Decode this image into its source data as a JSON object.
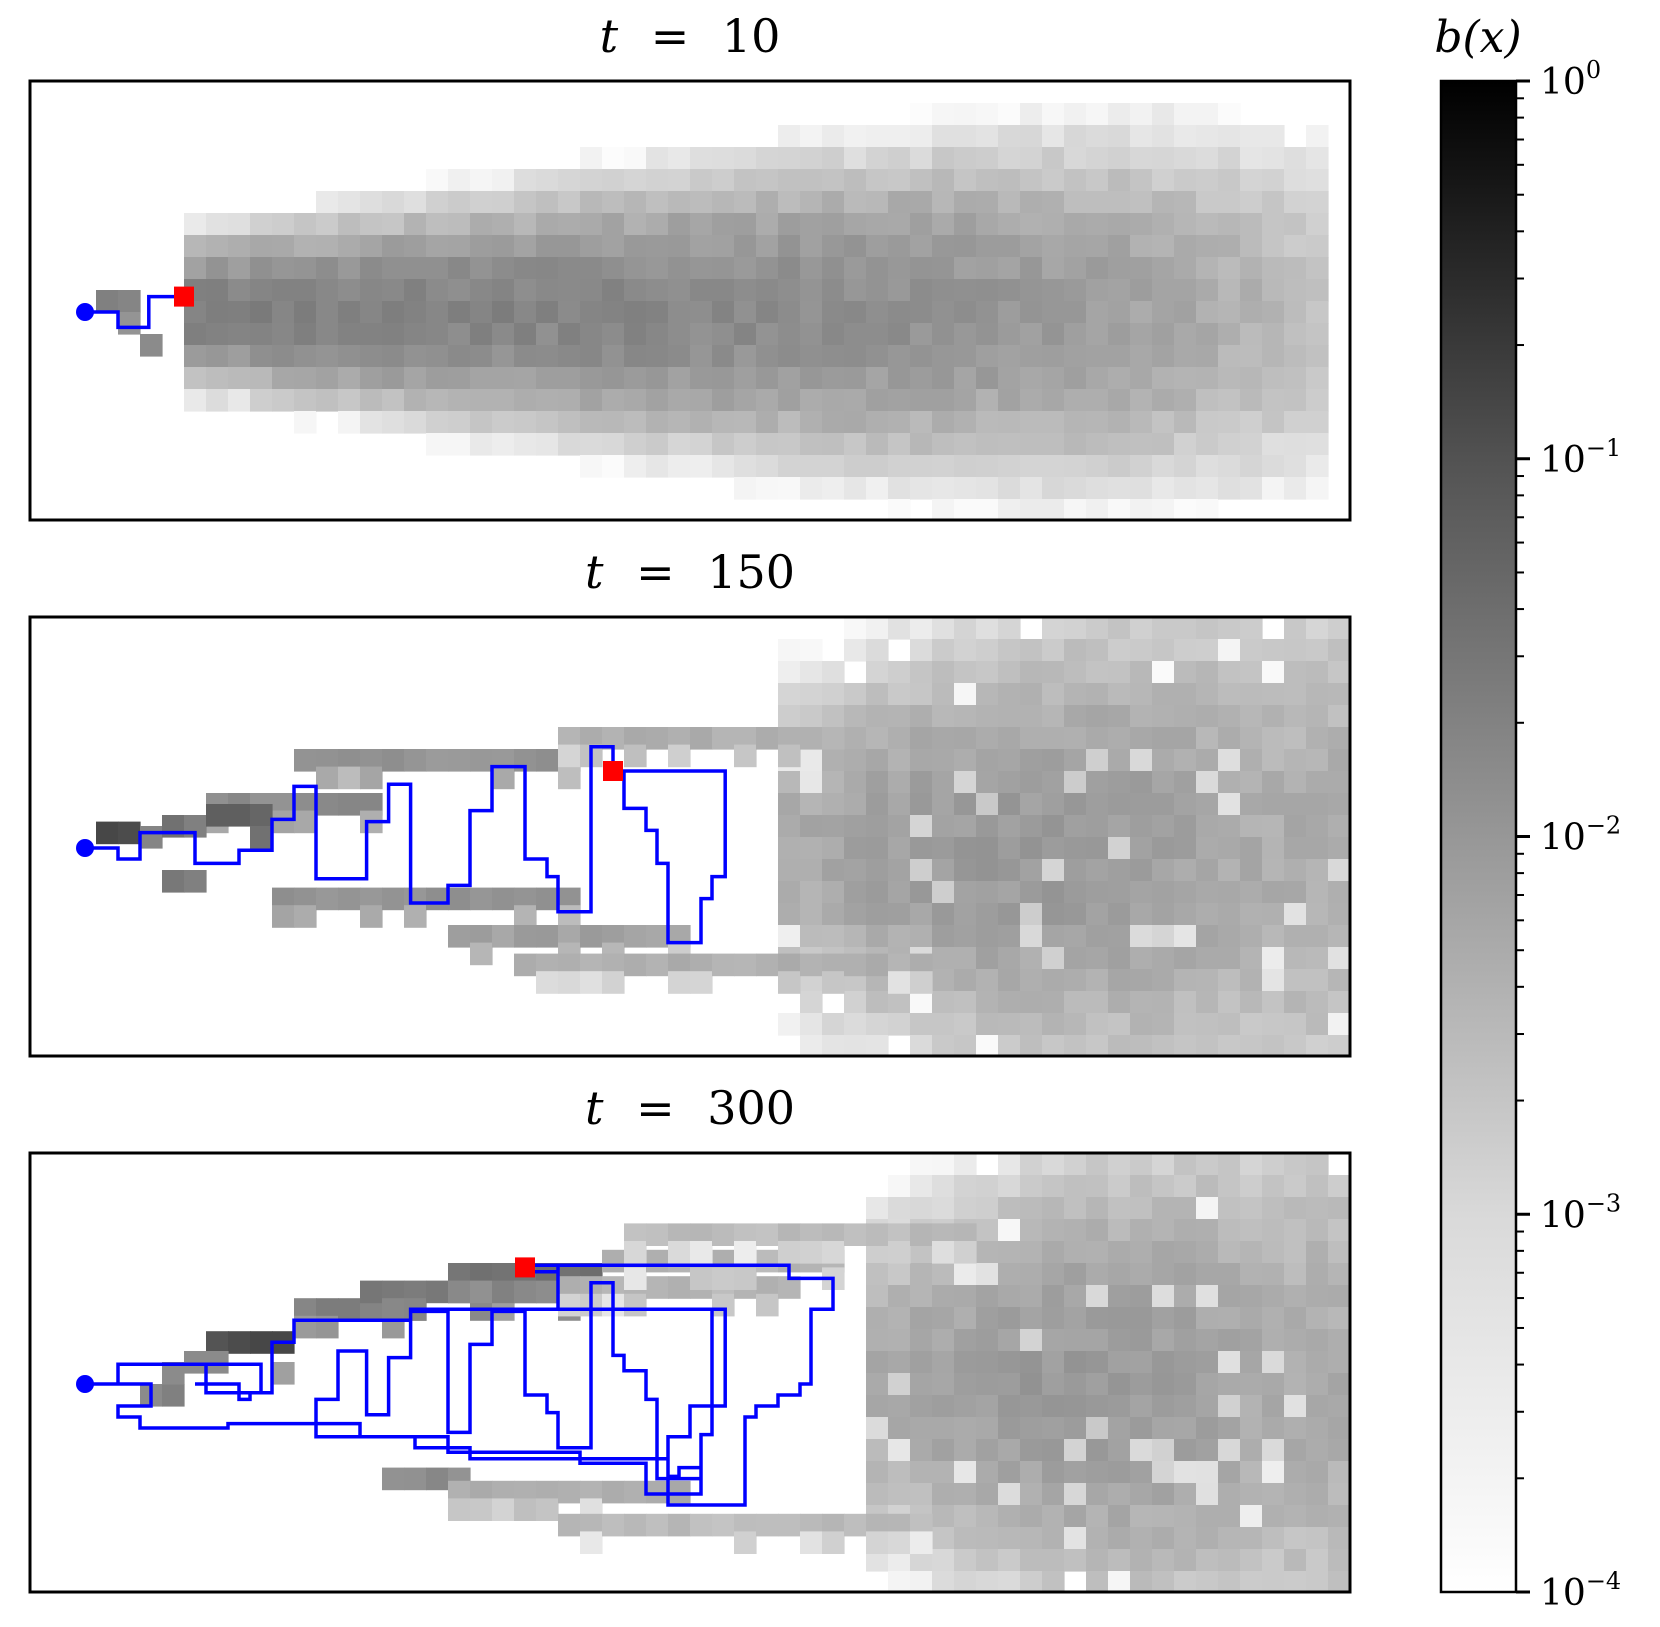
{
  "chart_data": {
    "type": "heatmap",
    "panels": [
      {
        "title_t": "t",
        "title_eq": "=",
        "title_value": "10",
        "grid_cols": 60,
        "grid_rows": 20,
        "start_cell": [
          2.5,
          10.5
        ],
        "agent_cell": [
          7,
          9.8
        ],
        "path": [
          [
            2.5,
            10.5
          ],
          [
            4,
            10.5
          ],
          [
            4,
            11.2
          ],
          [
            5.4,
            11.2
          ],
          [
            5.4,
            9.8
          ],
          [
            7,
            9.8
          ]
        ],
        "beliefs": [
          {
            "cell": [
              3,
              9.5
            ],
            "value": 0.006
          },
          {
            "cell": [
              4,
              9.5
            ],
            "value": 0.005
          },
          {
            "cell": [
              4,
              10.5
            ],
            "value": 0.003
          },
          {
            "cell": [
              5,
              11.5
            ],
            "value": 0.004
          }
        ],
        "cloud": {
          "x0": 7,
          "x1": 58,
          "center_row": 10.5,
          "spread_start": 1.5,
          "spread_end": 4.5,
          "peak": 0.006
        }
      },
      {
        "title_t": "t",
        "title_eq": "=",
        "title_value": "150",
        "grid_cols": 60,
        "grid_rows": 20,
        "start_cell": [
          2.5,
          10.5
        ],
        "agent_cell": [
          26.5,
          7
        ],
        "path": [
          [
            2.5,
            10.5
          ],
          [
            4,
            10.5
          ],
          [
            4,
            11
          ],
          [
            5,
            11
          ],
          [
            5,
            9.8
          ],
          [
            7.5,
            9.8
          ],
          [
            7.5,
            11.2
          ],
          [
            9.5,
            11.2
          ],
          [
            9.5,
            10.6
          ],
          [
            11,
            10.6
          ],
          [
            11,
            9.2
          ],
          [
            12,
            9.2
          ],
          [
            12,
            7.7
          ],
          [
            13,
            7.7
          ],
          [
            13,
            11.9
          ],
          [
            15.3,
            11.9
          ],
          [
            15.3,
            9.3
          ],
          [
            16.3,
            9.3
          ],
          [
            16.3,
            7.6
          ],
          [
            17.3,
            7.6
          ],
          [
            17.3,
            13
          ],
          [
            19,
            13
          ],
          [
            19,
            12.2
          ],
          [
            20,
            12.2
          ],
          [
            20,
            8.8
          ],
          [
            21,
            8.8
          ],
          [
            21,
            6.8
          ],
          [
            22.5,
            6.8
          ],
          [
            22.5,
            11
          ],
          [
            23.5,
            11
          ],
          [
            23.5,
            11.8
          ],
          [
            24,
            11.8
          ],
          [
            24,
            13.4
          ],
          [
            25.5,
            13.4
          ],
          [
            25.5,
            5.9
          ],
          [
            26.5,
            5.9
          ],
          [
            26.5,
            7
          ],
          [
            27,
            7
          ],
          [
            27,
            8.7
          ],
          [
            28,
            8.7
          ],
          [
            28,
            9.7
          ],
          [
            28.5,
            9.7
          ],
          [
            28.5,
            11.2
          ],
          [
            29,
            11.2
          ],
          [
            29,
            14.8
          ],
          [
            30.5,
            14.8
          ],
          [
            30.5,
            12.8
          ],
          [
            31,
            12.8
          ],
          [
            31,
            11.8
          ],
          [
            31.6,
            11.8
          ],
          [
            31.6,
            7
          ],
          [
            27,
            7
          ]
        ],
        "beliefs": [
          {
            "cell": [
              3,
              9.3
            ],
            "value": 0.05
          },
          {
            "cell": [
              4,
              9.3
            ],
            "value": 0.04
          },
          {
            "cell": [
              5,
              9.5
            ],
            "value": 0.005
          },
          {
            "cell": [
              6,
              9
            ],
            "value": 0.01
          },
          {
            "cell": [
              7,
              9
            ],
            "value": 0.006
          },
          {
            "cell": [
              8,
              8.5
            ],
            "value": 0.02
          },
          {
            "cell": [
              9,
              8.5
            ],
            "value": 0.02
          },
          {
            "cell": [
              10,
              8.5
            ],
            "value": 0.015
          },
          {
            "cell": [
              10,
              9.5
            ],
            "value": 0.01
          },
          {
            "cell": [
              6,
              11.5
            ],
            "value": 0.008
          },
          {
            "cell": [
              7,
              11.5
            ],
            "value": 0.006
          }
        ],
        "streaks": [
          {
            "x0": 8,
            "x1": 15,
            "row": 8.0,
            "value": 0.004
          },
          {
            "x0": 12,
            "x1": 24,
            "row": 6.0,
            "value": 0.003
          },
          {
            "x0": 11,
            "x1": 24,
            "row": 12.3,
            "value": 0.003
          },
          {
            "x0": 19,
            "x1": 29,
            "row": 14.0,
            "value": 0.002
          },
          {
            "x0": 22,
            "x1": 40,
            "row": 15.3,
            "value": 0.0012
          },
          {
            "x0": 24,
            "x1": 36,
            "row": 5.0,
            "value": 0.0012
          }
        ],
        "cloud": {
          "x0": 34,
          "x1": 59,
          "center_row": 10.5,
          "spread_start": 4,
          "spread_end": 7,
          "peak": 0.0025
        }
      },
      {
        "title_t": "t",
        "title_eq": "=",
        "title_value": "300",
        "grid_cols": 60,
        "grid_rows": 20,
        "start_cell": [
          2.5,
          10.5
        ],
        "agent_cell": [
          22.5,
          5.2
        ],
        "path": [
          [
            2.5,
            10.5
          ],
          [
            4,
            10.5
          ],
          [
            4,
            9.6
          ],
          [
            10.5,
            9.6
          ],
          [
            10.5,
            10.9
          ],
          [
            8,
            10.9
          ],
          [
            8,
            9.6
          ],
          [
            4,
            9.6
          ],
          [
            4,
            10.5
          ],
          [
            5.5,
            10.5
          ],
          [
            5.5,
            11.5
          ],
          [
            4,
            11.5
          ],
          [
            4,
            12
          ],
          [
            5,
            12
          ],
          [
            5,
            12.5
          ],
          [
            9,
            12.5
          ],
          [
            9,
            12.3
          ],
          [
            15,
            12.3
          ],
          [
            15,
            12.9
          ],
          [
            19,
            12.9
          ],
          [
            19,
            13.6
          ],
          [
            25,
            13.6
          ],
          [
            25,
            14.1
          ],
          [
            28,
            14.1
          ],
          [
            28,
            15.5
          ],
          [
            30.5,
            15.5
          ],
          [
            30.5,
            14.3
          ],
          [
            29.5,
            14.3
          ],
          [
            29.5,
            14.7
          ],
          [
            29,
            14.7
          ],
          [
            29,
            12.9
          ],
          [
            30,
            12.9
          ],
          [
            30,
            11.5
          ],
          [
            31,
            11.5
          ],
          [
            31,
            7.1
          ],
          [
            24,
            7.1
          ],
          [
            24,
            5.1
          ],
          [
            22.5,
            5.1
          ],
          [
            22.5,
            5.4
          ],
          [
            24,
            5.4
          ],
          [
            24,
            5.1
          ],
          [
            34.5,
            5.1
          ],
          [
            34.5,
            5.7
          ],
          [
            36.5,
            5.7
          ],
          [
            36.5,
            7.1
          ],
          [
            35.5,
            7.1
          ],
          [
            35.5,
            10.5
          ],
          [
            35,
            10.5
          ],
          [
            35,
            11
          ],
          [
            34,
            11
          ],
          [
            34,
            11.5
          ],
          [
            33,
            11.5
          ],
          [
            33,
            12
          ],
          [
            32.5,
            12
          ],
          [
            32.5,
            16
          ],
          [
            29,
            16
          ],
          [
            29,
            13.9
          ],
          [
            20,
            13.9
          ],
          [
            20,
            13.4
          ],
          [
            17.5,
            13.4
          ],
          [
            17.5,
            12.9
          ],
          [
            13,
            12.9
          ],
          [
            13,
            11.2
          ],
          [
            14,
            11.2
          ],
          [
            14,
            9
          ],
          [
            15.3,
            9
          ],
          [
            15.3,
            11.9
          ],
          [
            16.3,
            11.9
          ],
          [
            16.3,
            9.3
          ],
          [
            17.3,
            9.3
          ],
          [
            17.3,
            7.2
          ],
          [
            19,
            7.2
          ],
          [
            19,
            12.7
          ],
          [
            20,
            12.7
          ],
          [
            20,
            8.7
          ],
          [
            21,
            8.7
          ],
          [
            21,
            7.2
          ],
          [
            22.5,
            7.2
          ],
          [
            22.5,
            11
          ],
          [
            23.5,
            11
          ],
          [
            23.5,
            11.8
          ],
          [
            24,
            11.8
          ],
          [
            24,
            13.4
          ],
          [
            25.5,
            13.4
          ],
          [
            25.5,
            5.9
          ],
          [
            26.5,
            5.9
          ],
          [
            26.5,
            9.2
          ],
          [
            27,
            9.2
          ],
          [
            27,
            9.9
          ],
          [
            28,
            9.9
          ],
          [
            28,
            11.2
          ],
          [
            28.5,
            11.2
          ],
          [
            28.5,
            14.8
          ],
          [
            30.5,
            14.8
          ],
          [
            30.5,
            12.8
          ],
          [
            31,
            12.8
          ],
          [
            31,
            11.5
          ],
          [
            31.6,
            11.5
          ],
          [
            31.6,
            7.1
          ],
          [
            17.3,
            7.1
          ],
          [
            17.3,
            7.6
          ],
          [
            12,
            7.6
          ],
          [
            12,
            8.6
          ],
          [
            11,
            8.6
          ],
          [
            11,
            10.9
          ],
          [
            10,
            10.9
          ],
          [
            10,
            11.2
          ],
          [
            9.5,
            11.2
          ],
          [
            9.5,
            10.5
          ],
          [
            7.5,
            10.5
          ]
        ],
        "beliefs": [
          {
            "cell": [
              8,
              8.1
            ],
            "value": 0.03
          },
          {
            "cell": [
              9,
              8.1
            ],
            "value": 0.04
          },
          {
            "cell": [
              10,
              8.1
            ],
            "value": 0.05
          },
          {
            "cell": [
              11,
              8.1
            ],
            "value": 0.05
          },
          {
            "cell": [
              5,
              10.5
            ],
            "value": 0.004
          },
          {
            "cell": [
              6,
              10.5
            ],
            "value": 0.006
          },
          {
            "cell": [
              6,
              9.5
            ],
            "value": 0.004
          },
          {
            "cell": [
              7,
              9.0
            ],
            "value": 0.004
          },
          {
            "cell": [
              8,
              9.0
            ],
            "value": 0.004
          },
          {
            "cell": [
              11,
              9.5
            ],
            "value": 0.002
          }
        ],
        "streaks": [
          {
            "x0": 12,
            "x1": 17,
            "row": 6.6,
            "value": 0.006
          },
          {
            "x0": 15,
            "x1": 24,
            "row": 5.8,
            "value": 0.008
          },
          {
            "x0": 19,
            "x1": 25,
            "row": 5.0,
            "value": 0.01
          },
          {
            "x0": 24,
            "x1": 34,
            "row": 5.6,
            "value": 0.001
          },
          {
            "x0": 26,
            "x1": 36,
            "row": 4.4,
            "value": 0.001
          },
          {
            "x0": 16,
            "x1": 19,
            "row": 14.3,
            "value": 0.004
          },
          {
            "x0": 19,
            "x1": 29,
            "row": 14.9,
            "value": 0.0012
          },
          {
            "x0": 24,
            "x1": 40,
            "row": 16.4,
            "value": 0.0008
          },
          {
            "x0": 27,
            "x1": 42,
            "row": 3.2,
            "value": 0.0008
          }
        ],
        "cloud": {
          "x0": 38,
          "x1": 59,
          "center_row": 10.5,
          "spread_start": 4,
          "spread_end": 7,
          "peak": 0.0025
        }
      }
    ],
    "colorbar": {
      "label": "b(x)",
      "scale": "log",
      "vmin": 0.0001,
      "vmax": 1,
      "ticks": [
        {
          "base": "10",
          "exp": "0",
          "value": 1
        },
        {
          "base": "10",
          "exp": "−1",
          "value": 0.1
        },
        {
          "base": "10",
          "exp": "−2",
          "value": 0.01
        },
        {
          "base": "10",
          "exp": "−3",
          "value": 0.001
        },
        {
          "base": "10",
          "exp": "−4",
          "value": 0.0001
        }
      ],
      "cmap": "Greys"
    },
    "colors": {
      "path": "#0000ff",
      "start_marker": "#0000ff",
      "agent_marker": "#ff0000",
      "frame": "#000000"
    },
    "grid": false,
    "legend": "none"
  }
}
